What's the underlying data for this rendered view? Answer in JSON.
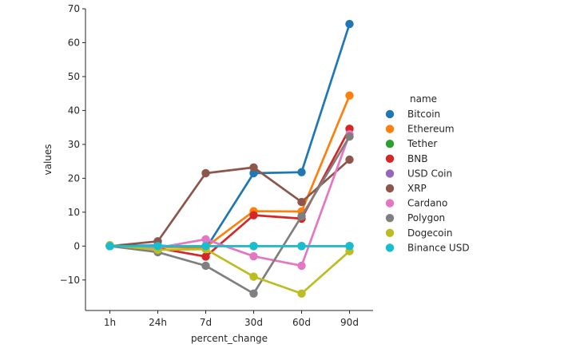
{
  "chart_data": {
    "type": "line",
    "xlabel": "percent_change",
    "ylabel": "values",
    "categories": [
      "1h",
      "24h",
      "7d",
      "30d",
      "60d",
      "90d"
    ],
    "ylim": [
      -19,
      70
    ],
    "yticks": [
      -10,
      0,
      10,
      20,
      30,
      40,
      50,
      60,
      70
    ],
    "ytick_labels": [
      "−10",
      "0",
      "10",
      "20",
      "30",
      "40",
      "50",
      "60",
      "70"
    ],
    "grid": false,
    "legend": {
      "title": "name",
      "placement": "right"
    },
    "series": [
      {
        "name": "Bitcoin",
        "color": "#1f77b4",
        "values": [
          0.0,
          0.2,
          -0.8,
          21.5,
          21.8,
          65.5
        ]
      },
      {
        "name": "Ethereum",
        "color": "#ff7f0e",
        "values": [
          0.0,
          -0.3,
          -0.3,
          10.3,
          10.2,
          44.4
        ]
      },
      {
        "name": "Tether",
        "color": "#2ca02c",
        "values": [
          0.0,
          0.0,
          0.0,
          0.0,
          0.0,
          0.0
        ]
      },
      {
        "name": "BNB",
        "color": "#d62728",
        "values": [
          0.0,
          -0.6,
          -3.1,
          9.1,
          8.1,
          34.6
        ]
      },
      {
        "name": "USD Coin",
        "color": "#9467bd",
        "values": [
          0.0,
          0.0,
          0.0,
          0.0,
          0.0,
          0.0
        ]
      },
      {
        "name": "XRP",
        "color": "#8c564b",
        "values": [
          0.0,
          1.4,
          21.5,
          23.2,
          13.0,
          25.5
        ]
      },
      {
        "name": "Cardano",
        "color": "#e377c2",
        "values": [
          0.0,
          -0.5,
          2.0,
          -3.0,
          -5.8,
          33.0
        ]
      },
      {
        "name": "Polygon",
        "color": "#7f7f7f",
        "values": [
          0.0,
          -1.8,
          -5.8,
          -14.0,
          8.8,
          32.3
        ]
      },
      {
        "name": "Dogecoin",
        "color": "#bcbd22",
        "values": [
          0.3,
          -1.1,
          -0.9,
          -9.0,
          -14.0,
          -1.5
        ]
      },
      {
        "name": "Binance USD",
        "color": "#17becf",
        "values": [
          0.0,
          0.0,
          0.0,
          0.0,
          0.0,
          0.0
        ]
      }
    ]
  }
}
